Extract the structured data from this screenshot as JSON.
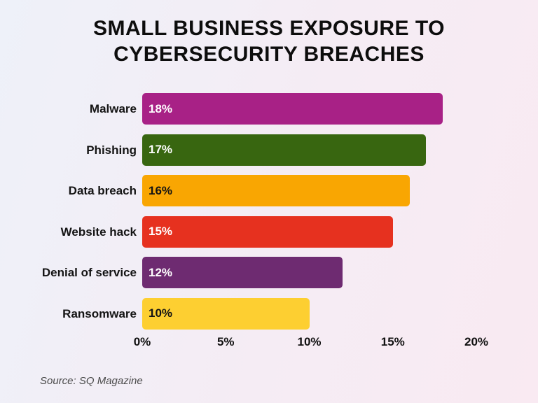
{
  "title": "SMALL BUSINESS EXPOSURE TO CYBERSECURITY BREACHES",
  "source": "Source: SQ Magazine",
  "chart_data": {
    "type": "bar",
    "orientation": "horizontal",
    "title": "SMALL BUSINESS EXPOSURE TO CYBERSECURITY BREACHES",
    "categories": [
      "Malware",
      "Phishing",
      "Data breach",
      "Website hack",
      "Denial of service",
      "Ransomware"
    ],
    "values": [
      18,
      17,
      16,
      15,
      12,
      10
    ],
    "value_labels": [
      "18%",
      "17%",
      "16%",
      "15%",
      "12%",
      "10%"
    ],
    "bar_colors": [
      "#A82186",
      "#386610",
      "#F9A602",
      "#E6311F",
      "#6E2B71",
      "#FDCF31"
    ],
    "value_label_colors": [
      "#FFFFFF",
      "#FFFFFF",
      "#131313",
      "#FFFFFF",
      "#FFFFFF",
      "#131313"
    ],
    "x_ticks": [
      "0%",
      "5%",
      "10%",
      "15%",
      "20%"
    ],
    "x_tick_values": [
      0,
      5,
      10,
      15,
      20
    ],
    "xlim": [
      0,
      20
    ],
    "xlabel": "",
    "ylabel": "",
    "grid": false,
    "legend": false,
    "source": "Source: SQ Magazine"
  },
  "colors": {
    "background_start": "#EEF1F9",
    "background_end": "#F9EAF2",
    "title_text": "#0D0D0D",
    "category_text": "#141414",
    "axis_text": "#111111",
    "source_text": "#4A4A4A"
  }
}
